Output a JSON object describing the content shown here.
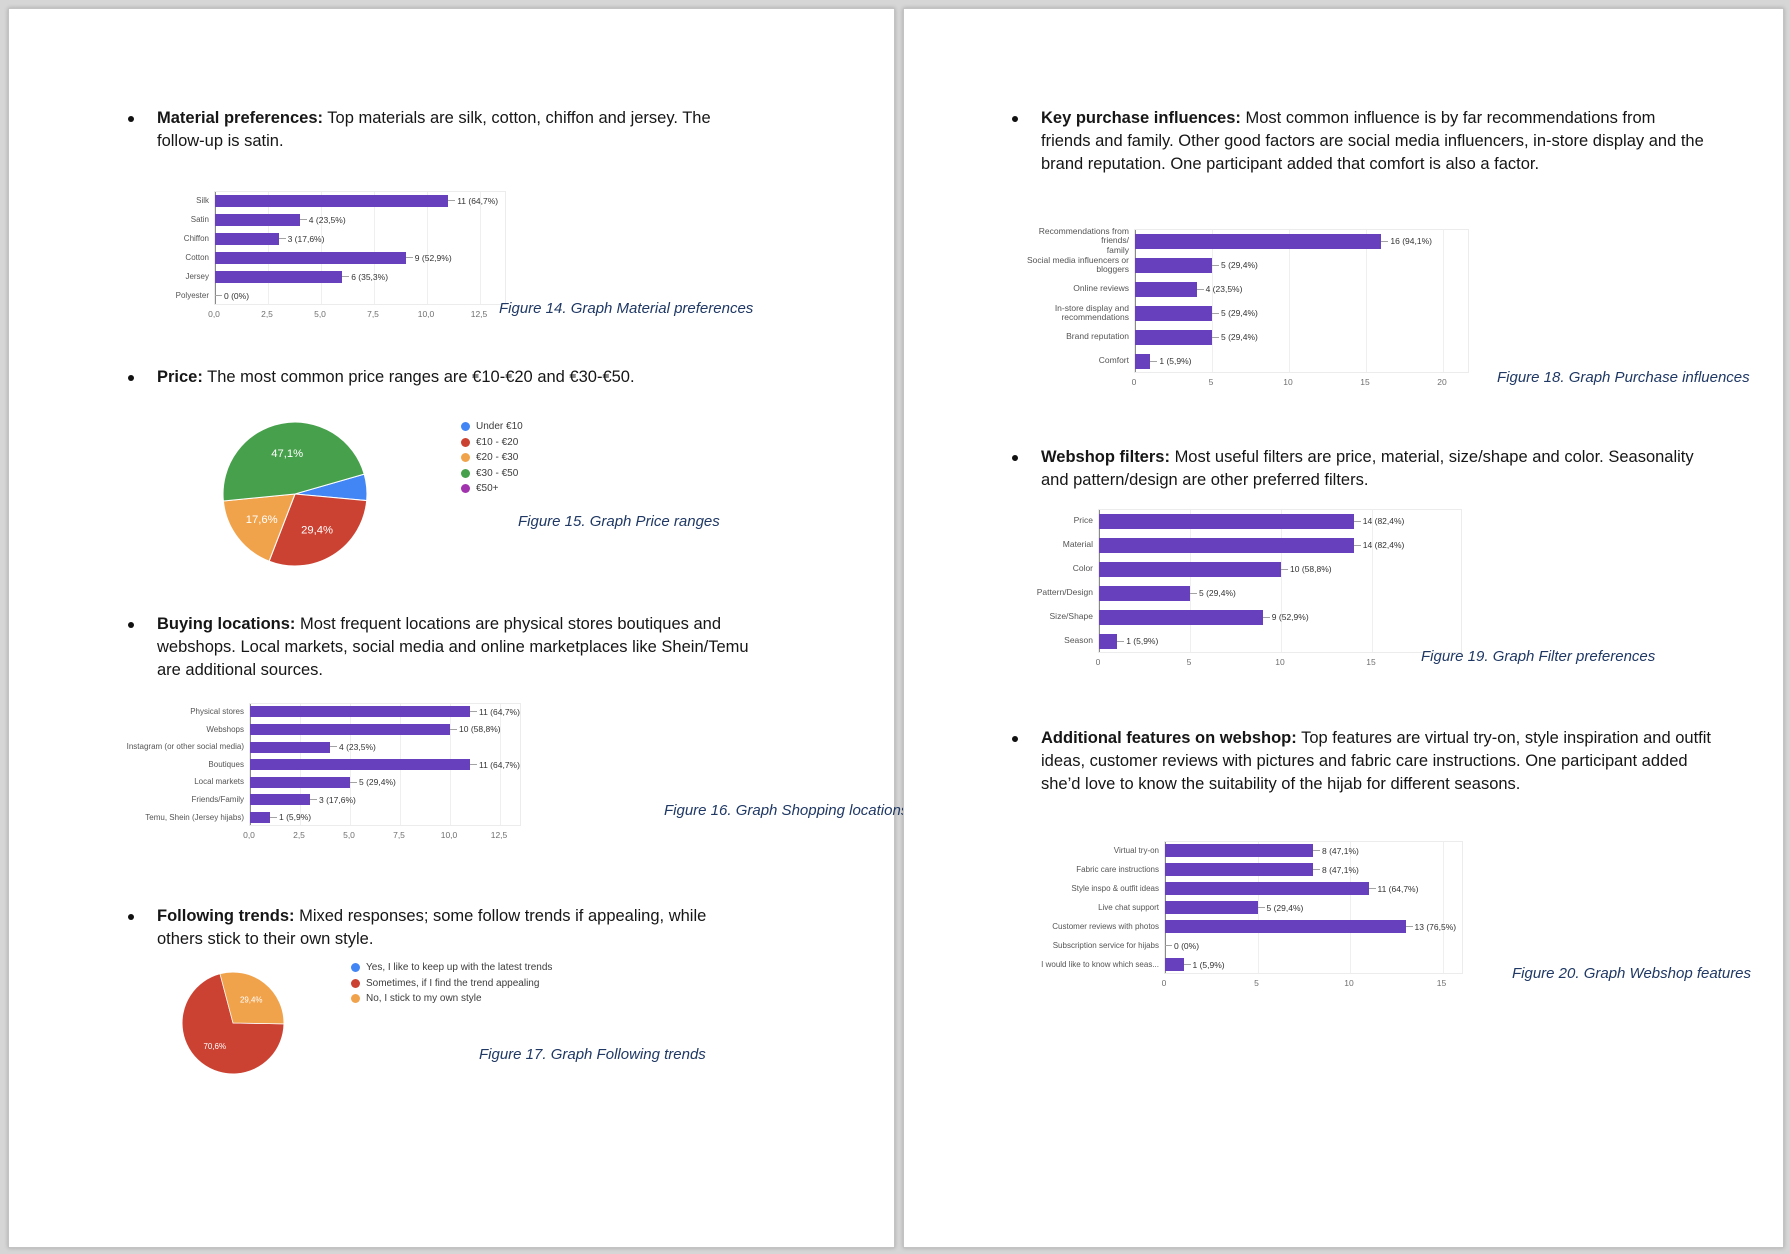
{
  "document": {
    "background": "#d6d6d6",
    "page_color": "#ffffff"
  },
  "palette": {
    "bar_color": "#6741bd",
    "caption_color": "#1f3864",
    "pie_blue": "#4285f4",
    "pie_red": "#cc4232",
    "pie_orange": "#f1a34c",
    "pie_green": "#47a04b",
    "pie_purple": "#a233ae"
  },
  "pages": [
    {
      "bullets": [
        {
          "label": "Material preferences:",
          "text": "Top materials are silk, cotton, chiffon and jersey. The follow-up is satin."
        },
        {
          "label": "Price:",
          "text": "The most common price ranges are €10-€20 and €30-€50."
        },
        {
          "label": "Buying locations:",
          "text": "Most frequent locations are physical stores boutiques and webshops. Local markets, social media and online marketplaces like Shein/Temu are additional sources."
        },
        {
          "label": "Following trends:",
          "text": "Mixed responses; some follow trends if appealing, while others stick to their own style."
        }
      ]
    },
    {
      "bullets": [
        {
          "label": "Key purchase influences:",
          "text": "Most common influence is by far recommendations from friends and family. Other good factors are social media influencers, in-store display and the brand reputation. One participant added that comfort is also a factor."
        },
        {
          "label": "Webshop filters:",
          "text": "Most useful filters are price, material, size/shape and color. Seasonality and pattern/design are other preferred filters."
        },
        {
          "label": "Additional features on webshop:",
          "text": "Top features are virtual try-on, style inspiration and outfit ideas, customer reviews with pictures and fabric care instructions. One participant added she’d love to know the suitability of the hijab for different seasons."
        }
      ]
    }
  ],
  "captions": [
    "Figure 14. Graph Material preferences",
    "Figure 15. Graph Price ranges",
    "Figure 16. Graph Shopping locations",
    "Figure 17. Graph Following trends",
    "Figure 18. Graph Purchase influences",
    "Figure 19. Graph Filter preferences",
    "Figure 20. Graph Webshop features"
  ],
  "chart_data": [
    {
      "id": "fig14",
      "type": "bar",
      "orientation": "horizontal",
      "title": "",
      "categories": [
        "Silk",
        "Satin",
        "Chiffon",
        "Cotton",
        "Jersey",
        "Polyester"
      ],
      "values": [
        11,
        4,
        3,
        9,
        6,
        0
      ],
      "value_labels": [
        "11 (64,7%)",
        "4 (23,5%)",
        "3 (17,6%)",
        "9 (52,9%)",
        "6 (35,3%)",
        "0 (0%)"
      ],
      "xlim": [
        0,
        12.5
      ],
      "ticks": [
        0,
        2.5,
        5,
        7.5,
        10,
        12.5
      ],
      "tick_labels": [
        "0,0",
        "2,5",
        "5,0",
        "7,5",
        "10,0",
        "12,5"
      ],
      "grid": true,
      "bar_color": "#6741bd"
    },
    {
      "id": "fig15",
      "type": "pie",
      "legend_position": "right",
      "start_angle": 74,
      "labels": [
        "Under €10",
        "€10 - €20",
        "€20 - €30",
        "€30 - €50",
        "€50+"
      ],
      "values": [
        5.9,
        29.4,
        17.6,
        47.1,
        0
      ],
      "slice_labels": [
        "",
        "29,4%",
        "17,6%",
        "47,1%",
        ""
      ],
      "colors": [
        "#4285f4",
        "#cc4232",
        "#f1a34c",
        "#47a04b",
        "#a233ae"
      ]
    },
    {
      "id": "fig16",
      "type": "bar",
      "orientation": "horizontal",
      "title": "",
      "categories": [
        "Physical stores",
        "Webshops",
        "Instagram (or other social media)",
        "Boutiques",
        "Local markets",
        "Friends/Family",
        "Temu, Shein (Jersey hijabs)"
      ],
      "values": [
        11,
        10,
        4,
        11,
        5,
        3,
        1
      ],
      "value_labels": [
        "11 (64,7%)",
        "10 (58,8%)",
        "4 (23,5%)",
        "11 (64,7%)",
        "5 (29,4%)",
        "3 (17,6%)",
        "1 (5,9%)"
      ],
      "xlim": [
        0,
        12.5
      ],
      "ticks": [
        0,
        2.5,
        5,
        7.5,
        10,
        12.5
      ],
      "tick_labels": [
        "0,0",
        "2,5",
        "5,0",
        "7,5",
        "10,0",
        "12,5"
      ],
      "grid": true,
      "bar_color": "#6741bd"
    },
    {
      "id": "fig17",
      "type": "pie",
      "legend_position": "right",
      "start_angle": 91,
      "labels": [
        "Yes, I like to keep up with the latest trends",
        "Sometimes, if I find the trend appealing",
        "No, I stick to my own style"
      ],
      "values": [
        0,
        70.6,
        29.4
      ],
      "slice_labels": [
        "",
        "70,6%",
        "29,4%"
      ],
      "colors": [
        "#4285f4",
        "#cc4232",
        "#f1a34c"
      ]
    },
    {
      "id": "fig18",
      "type": "bar",
      "orientation": "horizontal",
      "title": "",
      "categories": [
        [
          "Recommendations from friends/",
          "family"
        ],
        [
          "Social media influencers or",
          "bloggers"
        ],
        [
          "Online reviews"
        ],
        [
          "In-store display and",
          "recommendations"
        ],
        [
          "Brand reputation"
        ],
        [
          "Comfort"
        ]
      ],
      "values": [
        16,
        5,
        4,
        5,
        5,
        1
      ],
      "value_labels": [
        "16 (94,1%)",
        "5 (29,4%)",
        "4 (23,5%)",
        "5 (29,4%)",
        "5 (29,4%)",
        "1 (5,9%)"
      ],
      "xlim": [
        0,
        20
      ],
      "ticks": [
        0,
        5,
        10,
        15,
        20
      ],
      "tick_labels": [
        "0",
        "5",
        "10",
        "15",
        "20"
      ],
      "grid": true,
      "bar_color": "#6741bd"
    },
    {
      "id": "fig19",
      "type": "bar",
      "orientation": "horizontal",
      "title": "",
      "categories": [
        "Price",
        "Material",
        "Color",
        "Pattern/Design",
        "Size/Shape",
        "Season"
      ],
      "values": [
        14,
        14,
        10,
        5,
        9,
        1
      ],
      "value_labels": [
        "14 (82,4%)",
        "14 (82,4%)",
        "10 (58,8%)",
        "5 (29,4%)",
        "9 (52,9%)",
        "1 (5,9%)"
      ],
      "xlim": [
        0,
        15
      ],
      "ticks": [
        0,
        5,
        10,
        15
      ],
      "tick_labels": [
        "0",
        "5",
        "10",
        "15"
      ],
      "grid": true,
      "bar_color": "#6741bd"
    },
    {
      "id": "fig20",
      "type": "bar",
      "orientation": "horizontal",
      "title": "",
      "categories": [
        "Virtual try-on",
        "Fabric care instructions",
        "Style inspo & outfit ideas",
        "Live chat support",
        "Customer reviews with photos",
        "Subscription service for hijabs",
        "I would like to know which seas..."
      ],
      "values": [
        8,
        8,
        11,
        5,
        13,
        0,
        1
      ],
      "value_labels": [
        "8 (47,1%)",
        "8 (47,1%)",
        "11 (64,7%)",
        "5 (29,4%)",
        "13 (76,5%)",
        "0 (0%)",
        "1 (5,9%)"
      ],
      "xlim": [
        0,
        15
      ],
      "ticks": [
        0,
        5,
        10,
        15
      ],
      "tick_labels": [
        "0",
        "5",
        "10",
        "15"
      ],
      "grid": true,
      "bar_color": "#6741bd"
    }
  ]
}
